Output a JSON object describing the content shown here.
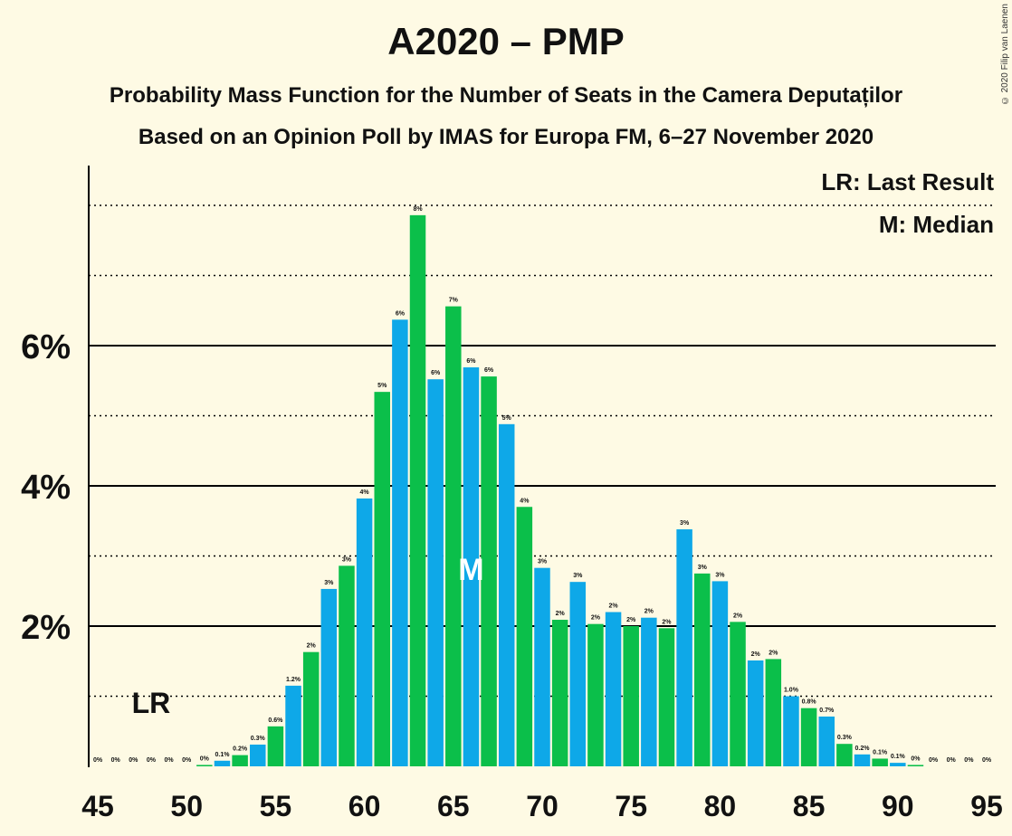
{
  "title": "A2020 – PMP",
  "subtitle_1": "Probability Mass Function for the Number of Seats in the Camera Deputaților",
  "subtitle_2": "Based on an Opinion Poll by IMAS for Europa FM, 6–27 November 2020",
  "copyright": "© 2020 Filip van Laenen",
  "legend": {
    "last_result": "LR: Last Result",
    "median": "M: Median"
  },
  "markers": {
    "last_result_label": "LR",
    "median_label": "M"
  },
  "colors": {
    "background": "#fefae4",
    "blue": "#0ea8e8",
    "green": "#0bbf4a",
    "text": "#111111"
  },
  "chart_data": {
    "type": "bar",
    "title": "A2020 – PMP",
    "xlabel": "",
    "ylabel": "",
    "x": [
      45,
      46,
      47,
      48,
      49,
      50,
      51,
      52,
      53,
      54,
      55,
      56,
      57,
      58,
      59,
      60,
      61,
      62,
      63,
      64,
      65,
      66,
      67,
      68,
      69,
      70,
      71,
      72,
      73,
      74,
      75,
      76,
      77,
      78,
      79,
      80,
      81,
      82,
      83,
      84,
      85,
      86,
      87,
      88,
      89,
      90,
      91,
      92,
      93,
      94,
      95
    ],
    "values": [
      0,
      0,
      0,
      0,
      0,
      0,
      0.02,
      0.08,
      0.16,
      0.31,
      0.57,
      1.15,
      1.63,
      2.53,
      2.86,
      3.82,
      5.34,
      6.37,
      7.86,
      5.52,
      6.56,
      5.69,
      5.56,
      4.88,
      3.7,
      2.83,
      2.09,
      2.63,
      2.03,
      2.2,
      2.0,
      2.12,
      1.97,
      3.38,
      2.75,
      2.64,
      2.06,
      1.51,
      1.53,
      1.0,
      0.83,
      0.71,
      0.32,
      0.17,
      0.11,
      0.05,
      0.02,
      0,
      0,
      0,
      0
    ],
    "data_labels": [
      "0%",
      "0%",
      "0%",
      "0%",
      "0%",
      "0%",
      "0%",
      "0.1%",
      "0.2%",
      "0.3%",
      "0.6%",
      "1.2%",
      "2%",
      "3%",
      "3%",
      "4%",
      "5%",
      "6%",
      "8%",
      "6%",
      "7%",
      "6%",
      "6%",
      "5%",
      "4%",
      "3%",
      "2%",
      "3%",
      "2%",
      "2%",
      "2%",
      "2%",
      "2%",
      "3%",
      "3%",
      "3%",
      "2%",
      "2%",
      "2%",
      "1.0%",
      "0.8%",
      "0.7%",
      "0.3%",
      "0.2%",
      "0.1%",
      "0.1%",
      "0%",
      "0%",
      "0%",
      "0%",
      "0%"
    ],
    "last_result": 48,
    "median": 66,
    "ylim": [
      0,
      8.5
    ],
    "xticks": [
      "45",
      "50",
      "55",
      "60",
      "65",
      "70",
      "75",
      "80",
      "85",
      "90",
      "95"
    ],
    "yticks": [
      {
        "value": 2,
        "label": "2%"
      },
      {
        "value": 4,
        "label": "4%"
      },
      {
        "value": 6,
        "label": "6%"
      }
    ],
    "grid": "solid at labeled ticks, dotted at 1% steps",
    "legend_position": "top-right"
  }
}
